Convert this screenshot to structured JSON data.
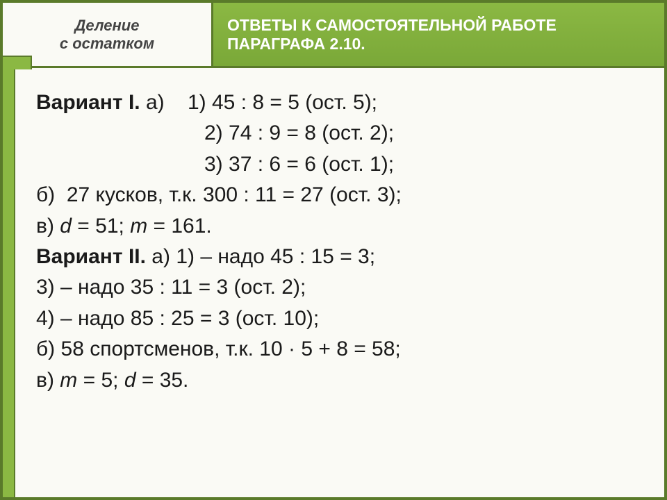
{
  "header": {
    "topic_line1": "Деление",
    "topic_line2": "с остатком",
    "title_line1": "ОТВЕТЫ К САМОСТОЯТЕЛЬНОЙ РАБОТЕ",
    "title_line2": "ПАРАГРАФА 2.10."
  },
  "content": {
    "v1_label": "Вариант I.",
    "v1_a1_prefix": " а)    1) 45 : 8 = 5 (ост. 5);",
    "v1_a2": "2) 74 : 9 = 8 (ост. 2);",
    "v1_a3": "3) 37 : 6 = 6 (ост. 1);",
    "v1_b": "б)  27 кусков, т.к. 300 : 11 = 27 (ост. 3);",
    "v1_c_prefix": "в) ",
    "v1_c_d": "d",
    "v1_c_mid": " = 51; ",
    "v1_c_m": "m",
    "v1_c_end": " = 161.",
    "v2_label": "Вариант II.",
    "v2_a1": " а) 1) – надо 45 : 15 = 3;",
    "v2_a3": "3) – надо 35 : 11 = 3 (ост. 2);",
    "v2_a4": "4) – надо 85 : 25 = 3 (ост. 10);",
    "v2_b": "б) 58 спортсменов, т.к. 10 · 5 + 8 = 58;",
    "v2_c_prefix": "в) ",
    "v2_c_m": "m",
    "v2_c_mid": " = 5; ",
    "v2_c_d": "d",
    "v2_c_end": " = 35."
  },
  "colors": {
    "frame_border": "#5a7a2a",
    "accent_green": "#8bb843",
    "content_bg": "#fafaf5",
    "text": "#1a1a1a",
    "header_text": "#ffffff"
  },
  "typography": {
    "header_left_fontsize": 22,
    "header_right_fontsize": 23,
    "content_fontsize": 30
  }
}
